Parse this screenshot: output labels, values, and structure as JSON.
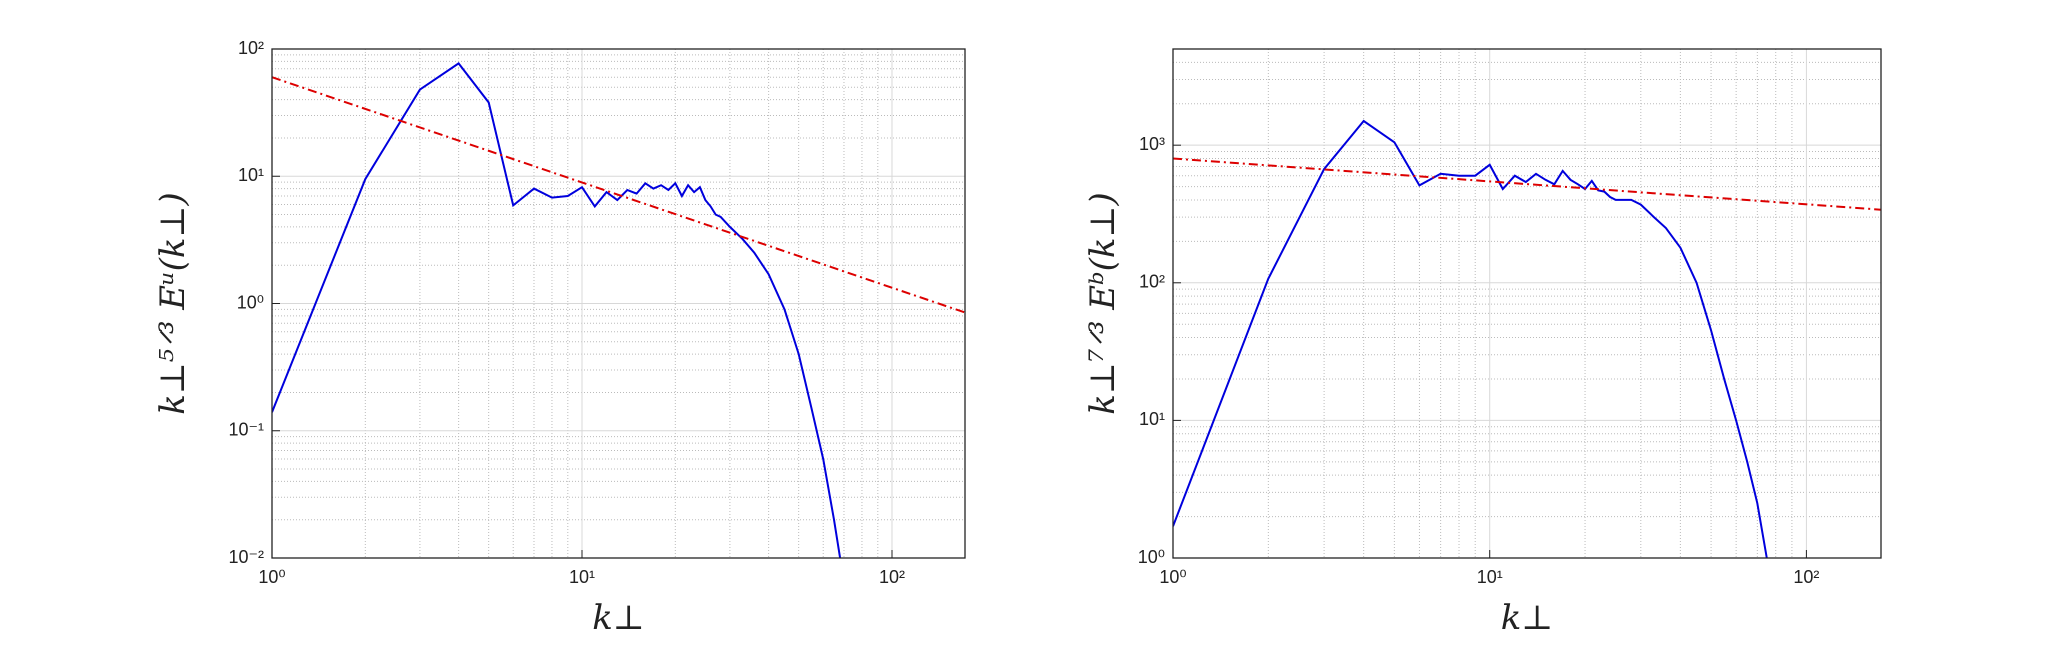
{
  "chart_data": [
    {
      "type": "line",
      "xlabel": "k⊥",
      "ylabel": "k⊥⁵ᐟ³ Eᵘ(k⊥)",
      "xscale": "log",
      "yscale": "log",
      "grid": true,
      "minor_grid": true,
      "xlim": [
        1,
        172
      ],
      "ylim": [
        0.01,
        100
      ],
      "xticks": [
        {
          "value": 1,
          "label": "10⁰"
        },
        {
          "value": 10,
          "label": "10¹"
        },
        {
          "value": 100,
          "label": "10²"
        }
      ],
      "yticks": [
        {
          "value": 0.01,
          "label": "10⁻²"
        },
        {
          "value": 0.1,
          "label": "10⁻¹"
        },
        {
          "value": 1,
          "label": "10⁰"
        },
        {
          "value": 10,
          "label": "10¹"
        },
        {
          "value": 100,
          "label": "10²"
        }
      ],
      "series": [
        {
          "color": "#0000dd",
          "style": "solid",
          "x": [
            1,
            2,
            3,
            4,
            5,
            6,
            7,
            8,
            9,
            10,
            11,
            12,
            13,
            14,
            15,
            16,
            17,
            18,
            19,
            20,
            21,
            22,
            23,
            24,
            25,
            26,
            27,
            28,
            30,
            33,
            36,
            40,
            45,
            50,
            55,
            60,
            65,
            68
          ],
          "values": [
            0.14,
            9.5,
            48,
            77,
            38,
            5.9,
            8,
            6.8,
            7,
            8.2,
            5.8,
            7.5,
            6.5,
            7.8,
            7.3,
            8.8,
            8,
            8.5,
            7.8,
            8.8,
            7,
            8.5,
            7.5,
            8.2,
            6.5,
            5.8,
            5,
            4.8,
            4,
            3.2,
            2.5,
            1.7,
            0.9,
            0.4,
            0.15,
            0.06,
            0.02,
            0.01
          ]
        },
        {
          "color": "#dd0000",
          "style": "dashdot",
          "x": [
            1,
            172
          ],
          "values": [
            60,
            0.85
          ]
        }
      ]
    },
    {
      "type": "line",
      "xlabel": "k⊥",
      "ylabel": "k⊥⁷ᐟ³ Eᵇ(k⊥)",
      "xscale": "log",
      "yscale": "log",
      "grid": true,
      "minor_grid": true,
      "xlim": [
        1,
        172
      ],
      "ylim": [
        1,
        5000
      ],
      "xticks": [
        {
          "value": 1,
          "label": "10⁰"
        },
        {
          "value": 10,
          "label": "10¹"
        },
        {
          "value": 100,
          "label": "10²"
        }
      ],
      "yticks": [
        {
          "value": 1,
          "label": "10⁰"
        },
        {
          "value": 10,
          "label": "10¹"
        },
        {
          "value": 100,
          "label": "10²"
        },
        {
          "value": 1000,
          "label": "10³"
        }
      ],
      "series": [
        {
          "color": "#0000dd",
          "style": "solid",
          "x": [
            1,
            2,
            3,
            4,
            5,
            6,
            7,
            8,
            9,
            10,
            11,
            12,
            13,
            14,
            15,
            16,
            17,
            18,
            19,
            20,
            21,
            22,
            23,
            24,
            25,
            28,
            30,
            33,
            36,
            40,
            45,
            50,
            55,
            60,
            65,
            70,
            75
          ],
          "values": [
            1.7,
            107,
            670,
            1500,
            1050,
            510,
            620,
            600,
            600,
            720,
            480,
            600,
            540,
            620,
            560,
            520,
            650,
            560,
            520,
            480,
            550,
            470,
            460,
            420,
            400,
            400,
            370,
            300,
            250,
            180,
            100,
            45,
            20,
            10,
            5,
            2.5,
            1
          ]
        },
        {
          "color": "#dd0000",
          "style": "dashdot",
          "x": [
            1,
            172
          ],
          "values": [
            800,
            340
          ]
        }
      ]
    }
  ]
}
